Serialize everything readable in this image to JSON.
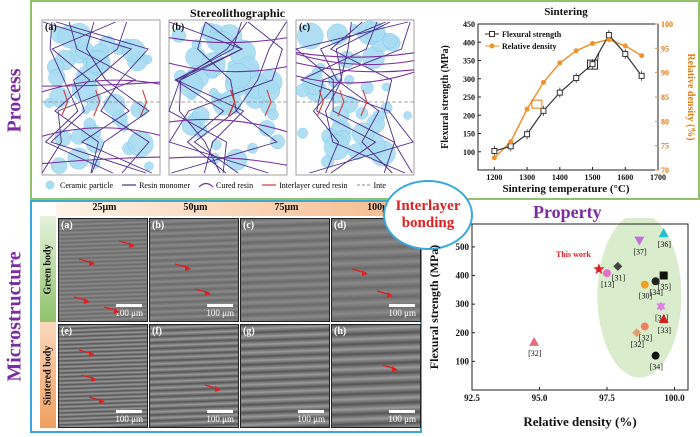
{
  "sections": {
    "process": "Process",
    "microstructure": "Microstructure",
    "property": "Property"
  },
  "stereo": {
    "title": "Stereolithographic",
    "panels": [
      "(a)",
      "(b)",
      "(c)"
    ],
    "legend": [
      {
        "label": "Ceramic particle",
        "kind": "circle",
        "color": "#a8dcf3"
      },
      {
        "label": "Resin monomer",
        "kind": "line",
        "color": "#4a2a8a"
      },
      {
        "label": "Cured resin",
        "kind": "curve",
        "color": "#7b2c9e"
      },
      {
        "label": "Interlayer cured resin",
        "kind": "line",
        "color": "#d23a3a"
      },
      {
        "label": "Inte",
        "kind": "dashed",
        "color": "#888888"
      }
    ]
  },
  "bonding": {
    "line1": "Interlayer",
    "line2": "bonding"
  },
  "micro": {
    "columns": [
      "25μm",
      "50μm",
      "75μm",
      "100μ"
    ],
    "rows": [
      "Green body",
      "Sintered body"
    ],
    "panels": [
      {
        "label": "(a)",
        "scale": "100 μm"
      },
      {
        "label": "(b)",
        "scale": "100 μm"
      },
      {
        "label": "(c)",
        "scale": ""
      },
      {
        "label": "(d)",
        "scale": "100 μm"
      },
      {
        "label": "(e)",
        "scale": "100 μm"
      },
      {
        "label": "(f)",
        "scale": "100 μm"
      },
      {
        "label": "(g)",
        "scale": "100 μm"
      },
      {
        "label": "(h)",
        "scale": "100 μm"
      }
    ]
  },
  "chart_data": [
    {
      "type": "line",
      "title": "Sintering",
      "xlabel": "Sintering temperature (°C)",
      "ylabel": "Flexural strength (MPa)",
      "y2label": "Relative density (%)",
      "xlim": [
        1150,
        1700
      ],
      "ylim": [
        50,
        450
      ],
      "y2lim": [
        70,
        100
      ],
      "xticks": [
        1200,
        1300,
        1400,
        1500,
        1600,
        1700
      ],
      "yticks": [
        100,
        150,
        200,
        250,
        300,
        350,
        400,
        450
      ],
      "y2ticks": [
        70,
        75,
        80,
        85,
        90,
        95,
        100
      ],
      "legend_position": "top-left",
      "x": [
        1200,
        1250,
        1300,
        1350,
        1400,
        1450,
        1500,
        1550,
        1600,
        1650
      ],
      "series": [
        {
          "name": "Flexural strength",
          "axis": "left",
          "color": "#333333",
          "marker": "square-open",
          "values": [
            102,
            115,
            148,
            212,
            262,
            302,
            340,
            420,
            368,
            308
          ]
        },
        {
          "name": "Relative density",
          "axis": "right",
          "color": "#f0932b",
          "marker": "circle",
          "values": [
            72.5,
            75.8,
            82.5,
            88.0,
            92.0,
            94.5,
            96.0,
            96.8,
            95.5,
            93.5
          ]
        }
      ]
    },
    {
      "type": "scatter",
      "xlabel": "Relative density (%)",
      "ylabel": "Flexural strength (MPa)",
      "xlim": [
        92.5,
        100.5
      ],
      "ylim": [
        0,
        580
      ],
      "xticks": [
        92.5,
        95.0,
        97.5,
        100.0
      ],
      "yticks": [
        100,
        200,
        300,
        400,
        500
      ],
      "annotation": "This work",
      "points": [
        {
          "x": 97.2,
          "y": 422,
          "label": "",
          "color": "#e0202a",
          "marker": "star"
        },
        {
          "x": 97.5,
          "y": 408,
          "label": "[13]",
          "color": "#e070c8",
          "marker": "circle"
        },
        {
          "x": 97.9,
          "y": 432,
          "label": "[31]",
          "color": "#444444",
          "marker": "diamond"
        },
        {
          "x": 98.7,
          "y": 522,
          "label": "[37]",
          "color": "#c070d8",
          "marker": "triangle-down"
        },
        {
          "x": 99.6,
          "y": 548,
          "label": "[36]",
          "color": "#20c0d0",
          "marker": "triangle"
        },
        {
          "x": 99.6,
          "y": 400,
          "label": "[35]",
          "color": "#111111",
          "marker": "square"
        },
        {
          "x": 99.3,
          "y": 380,
          "label": "[34]",
          "color": "#222222",
          "marker": "circle"
        },
        {
          "x": 98.9,
          "y": 368,
          "label": "[30]",
          "color": "#f0a020",
          "marker": "circle"
        },
        {
          "x": 99.5,
          "y": 292,
          "label": "[34]",
          "color": "#e080e0",
          "marker": "star6"
        },
        {
          "x": 99.6,
          "y": 248,
          "label": "[33]",
          "color": "#d02020",
          "marker": "triangle"
        },
        {
          "x": 98.9,
          "y": 222,
          "label": "[32]",
          "color": "#f08060",
          "marker": "circle"
        },
        {
          "x": 98.6,
          "y": 200,
          "label": "[32]",
          "color": "#e0a070",
          "marker": "diamond"
        },
        {
          "x": 99.3,
          "y": 120,
          "label": "[34]",
          "color": "#111111",
          "marker": "circle"
        },
        {
          "x": 94.8,
          "y": 168,
          "label": "[32]",
          "color": "#e07080",
          "marker": "triangle"
        }
      ]
    }
  ]
}
